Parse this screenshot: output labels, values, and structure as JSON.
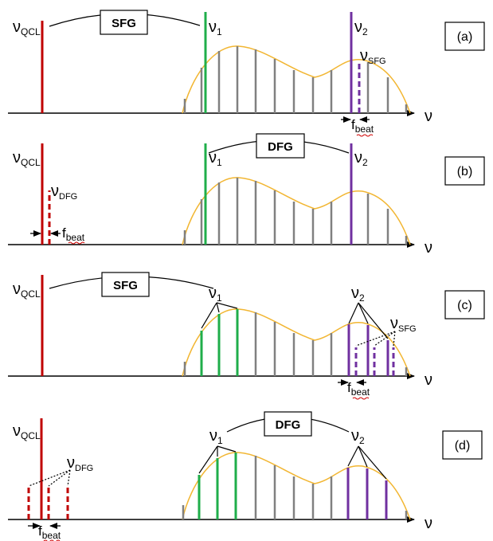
{
  "panels": [
    {
      "id": "a",
      "tag": "(a)",
      "process": "SFG",
      "qcl_label": "QCL",
      "nu1_label": "1",
      "nu2_label": "2",
      "extra_label": "SFG",
      "beat_label": "beat",
      "axis_label": "ν",
      "nu_symbol": "ν",
      "f_symbol": "f"
    },
    {
      "id": "b",
      "tag": "(b)",
      "process": "DFG",
      "qcl_label": "QCL",
      "nu1_label": "1",
      "nu2_label": "2",
      "extra_label": "DFG",
      "beat_label": "beat",
      "axis_label": "ν",
      "nu_symbol": "ν",
      "f_symbol": "f"
    },
    {
      "id": "c",
      "tag": "(c)",
      "process": "SFG",
      "qcl_label": "QCL",
      "nu1_label": "1",
      "nu2_label": "2",
      "extra_label": "SFG",
      "beat_label": "beat",
      "axis_label": "ν",
      "nu_symbol": "ν",
      "f_symbol": "f"
    },
    {
      "id": "d",
      "tag": "(d)",
      "process": "DFG",
      "qcl_label": "QCL",
      "nu1_label": "1",
      "nu2_label": "2",
      "extra_label": "DFG",
      "beat_label": "beat",
      "axis_label": "ν",
      "nu_symbol": "ν",
      "f_symbol": "f"
    }
  ],
  "colors": {
    "qcl": "#c00000",
    "nu1": "#1fae4a",
    "nu2": "#7030a0",
    "comb": "#808080",
    "envelope": "#f2b632",
    "axis": "#000000"
  }
}
